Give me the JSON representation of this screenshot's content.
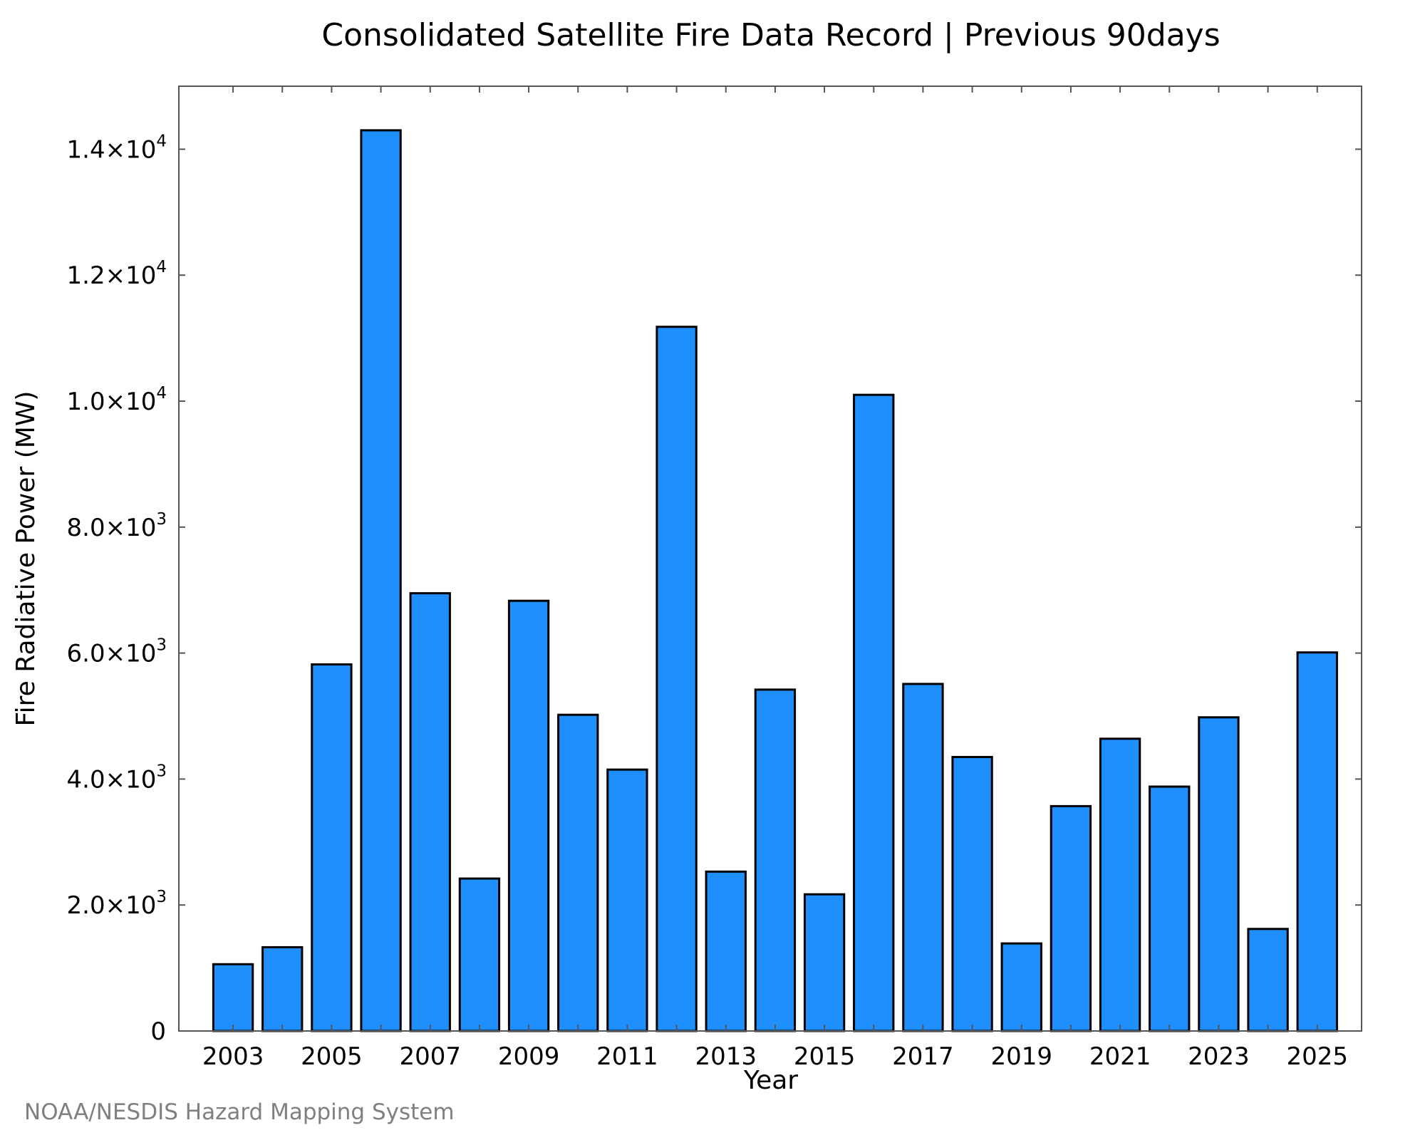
{
  "chart_data": {
    "type": "bar",
    "title": "Consolidated Satellite Fire Data Record | Previous 90days",
    "xlabel": "Year",
    "ylabel": "Fire Radiative Power (MW)",
    "categories": [
      2003,
      2004,
      2005,
      2006,
      2007,
      2008,
      2009,
      2010,
      2011,
      2012,
      2013,
      2014,
      2015,
      2016,
      2017,
      2018,
      2019,
      2020,
      2021,
      2022,
      2023,
      2024,
      2025
    ],
    "values": [
      1060,
      1330,
      5820,
      14300,
      6950,
      2420,
      6830,
      5020,
      4150,
      11180,
      2530,
      5420,
      2170,
      10100,
      5510,
      4350,
      1390,
      3570,
      4640,
      3880,
      4980,
      1620,
      6010
    ],
    "x_tick_labels": [
      "2003",
      "2005",
      "2007",
      "2009",
      "2011",
      "2013",
      "2015",
      "2017",
      "2019",
      "2021",
      "2023",
      "2025"
    ],
    "y_ticks": [
      {
        "value": 0,
        "mantissa": "0",
        "exponent": ""
      },
      {
        "value": 2000,
        "mantissa": "2.0×10",
        "exponent": "3"
      },
      {
        "value": 4000,
        "mantissa": "4.0×10",
        "exponent": "3"
      },
      {
        "value": 6000,
        "mantissa": "6.0×10",
        "exponent": "3"
      },
      {
        "value": 8000,
        "mantissa": "8.0×10",
        "exponent": "3"
      },
      {
        "value": 10000,
        "mantissa": "1.0×10",
        "exponent": "4"
      },
      {
        "value": 12000,
        "mantissa": "1.2×10",
        "exponent": "4"
      },
      {
        "value": 14000,
        "mantissa": "1.4×10",
        "exponent": "4"
      }
    ],
    "ylim": [
      0,
      15000
    ],
    "xlim": [
      2001.9,
      2025.9
    ],
    "bar_color": "#1f8ffd",
    "bar_edge_color": "#000000",
    "grid": false
  },
  "credit": "NOAA/NESDIS Hazard Mapping System"
}
